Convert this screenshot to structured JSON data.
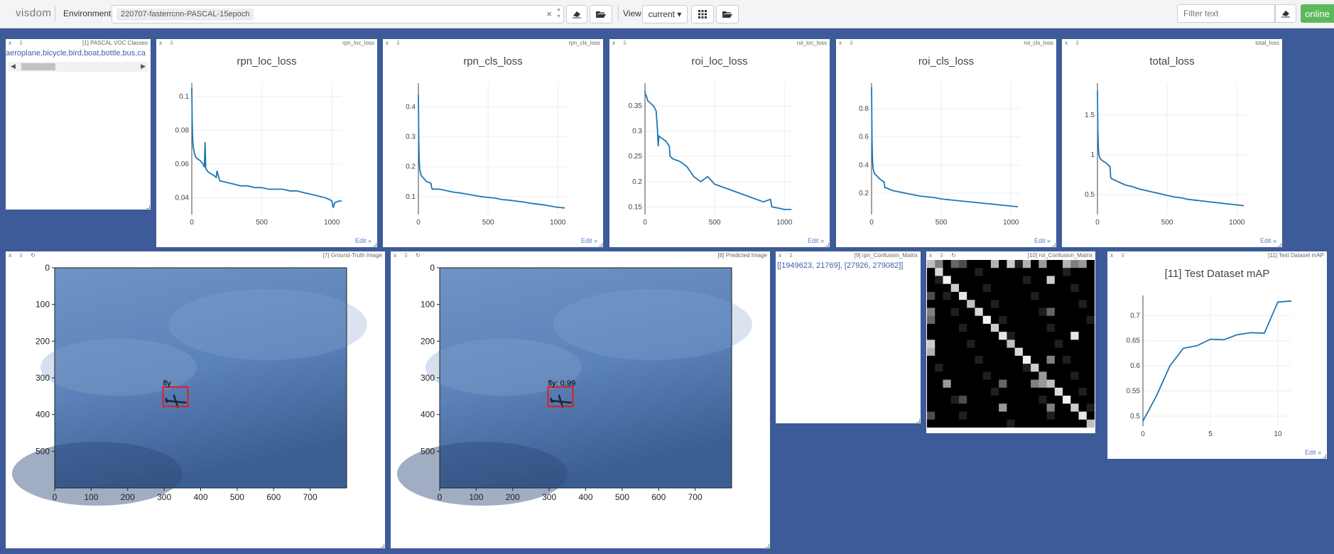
{
  "header": {
    "brand": "visdom",
    "env_label": "Environment",
    "env_value": "220707-fasterrcnn-PASCAL-15epoch",
    "view_label": "View",
    "view_value": "current ▾",
    "filter_placeholder": "Filter text",
    "online_label": "online"
  },
  "panes": {
    "classes": {
      "title": "[1] PASCAL VOC Classes",
      "text": "aeroplane,bicycle,bird,boat,bottle,bus,ca"
    },
    "rpn_loc": {
      "title": "rpn_loc_loss",
      "plot_title": "rpn_loc_loss",
      "edit": "Edit »"
    },
    "rpn_cls": {
      "title": "rpn_cls_loss",
      "plot_title": "rpn_cls_loss",
      "edit": "Edit »"
    },
    "roi_loc": {
      "title": "roi_loc_loss",
      "plot_title": "roi_loc_loss",
      "edit": "Edit »"
    },
    "roi_cls": {
      "title": "roi_cls_loss",
      "plot_title": "roi_cls_loss",
      "edit": "Edit »"
    },
    "total": {
      "title": "total_loss",
      "plot_title": "total_loss",
      "edit": "Edit »"
    },
    "gt_image": {
      "title": "[7] Ground-Truth Image",
      "box_label": "fly"
    },
    "pred_image": {
      "title": "[8] Predicted Image",
      "box_label": "fly: 0.99"
    },
    "rpn_conf": {
      "title": "[9] rpn_Confusion_Matrix",
      "text": "[[1949623, 21769], [27926, 279082]]"
    },
    "roi_conf": {
      "title": "[10] roi_Confusion_Matrix"
    },
    "map": {
      "title": "[11] Test Dataset mAP",
      "plot_title": "[11] Test Dataset mAP",
      "edit": "Edit »"
    }
  },
  "chart_data": [
    {
      "type": "line",
      "title": "rpn_loc_loss",
      "x": [
        0,
        3,
        6,
        10,
        20,
        30,
        40,
        60,
        80,
        90,
        95,
        100,
        110,
        120,
        140,
        160,
        175,
        180,
        200,
        250,
        300,
        350,
        400,
        450,
        500,
        550,
        600,
        650,
        700,
        750,
        800,
        850,
        900,
        950,
        980,
        1000,
        1010,
        1020,
        1050,
        1070
      ],
      "y": [
        0.105,
        0.085,
        0.075,
        0.07,
        0.066,
        0.064,
        0.063,
        0.062,
        0.06,
        0.058,
        0.073,
        0.057,
        0.056,
        0.055,
        0.054,
        0.053,
        0.052,
        0.056,
        0.05,
        0.049,
        0.048,
        0.047,
        0.047,
        0.046,
        0.046,
        0.045,
        0.045,
        0.045,
        0.044,
        0.044,
        0.043,
        0.042,
        0.041,
        0.04,
        0.039,
        0.038,
        0.034,
        0.037,
        0.038,
        0.038
      ],
      "xticks": [
        "0",
        "500",
        "1000"
      ],
      "yticks": [
        "0.04",
        "0.06",
        "0.08",
        "0.1"
      ],
      "xlim": [
        0,
        1070
      ],
      "ylim": [
        0.03,
        0.108
      ]
    },
    {
      "type": "line",
      "title": "rpn_cls_loss",
      "x": [
        0,
        3,
        6,
        10,
        20,
        40,
        60,
        90,
        95,
        100,
        150,
        200,
        250,
        300,
        350,
        400,
        450,
        500,
        550,
        600,
        650,
        700,
        750,
        800,
        850,
        900,
        950,
        1000,
        1050
      ],
      "y": [
        0.44,
        0.28,
        0.22,
        0.19,
        0.17,
        0.16,
        0.15,
        0.145,
        0.13,
        0.125,
        0.125,
        0.12,
        0.115,
        0.112,
        0.108,
        0.104,
        0.1,
        0.097,
        0.095,
        0.09,
        0.088,
        0.085,
        0.082,
        0.078,
        0.075,
        0.072,
        0.068,
        0.064,
        0.062
      ],
      "xticks": [
        "0",
        "500",
        "1000"
      ],
      "yticks": [
        "0.1",
        "0.2",
        "0.3",
        "0.4"
      ],
      "xlim": [
        0,
        1070
      ],
      "ylim": [
        0.04,
        0.48
      ]
    },
    {
      "type": "line",
      "title": "roi_loc_loss",
      "x": [
        0,
        5,
        10,
        20,
        40,
        60,
        80,
        90,
        95,
        100,
        150,
        175,
        180,
        200,
        250,
        300,
        350,
        400,
        450,
        500,
        550,
        600,
        650,
        700,
        750,
        800,
        850,
        900,
        910,
        950,
        1000,
        1050
      ],
      "y": [
        0.38,
        0.37,
        0.37,
        0.36,
        0.355,
        0.35,
        0.34,
        0.3,
        0.27,
        0.29,
        0.28,
        0.27,
        0.25,
        0.245,
        0.24,
        0.23,
        0.21,
        0.2,
        0.21,
        0.195,
        0.19,
        0.185,
        0.18,
        0.175,
        0.17,
        0.165,
        0.16,
        0.165,
        0.15,
        0.148,
        0.145,
        0.145
      ],
      "xticks": [
        "0",
        "500",
        "1000"
      ],
      "yticks": [
        "0.15",
        "0.2",
        "0.25",
        "0.3",
        "0.35"
      ],
      "xlim": [
        0,
        1070
      ],
      "ylim": [
        0.135,
        0.395
      ]
    },
    {
      "type": "line",
      "title": "roi_cls_loss",
      "x": [
        0,
        3,
        6,
        10,
        20,
        40,
        60,
        90,
        95,
        100,
        150,
        200,
        250,
        300,
        350,
        400,
        450,
        500,
        550,
        600,
        650,
        700,
        750,
        800,
        850,
        900,
        950,
        1000,
        1050
      ],
      "y": [
        0.95,
        0.6,
        0.45,
        0.38,
        0.34,
        0.32,
        0.3,
        0.28,
        0.24,
        0.24,
        0.22,
        0.21,
        0.2,
        0.19,
        0.18,
        0.175,
        0.17,
        0.16,
        0.155,
        0.15,
        0.145,
        0.14,
        0.135,
        0.13,
        0.125,
        0.12,
        0.115,
        0.11,
        0.105
      ],
      "xticks": [
        "0",
        "500",
        "1000"
      ],
      "yticks": [
        "0.2",
        "0.4",
        "0.6",
        "0.8"
      ],
      "xlim": [
        0,
        1070
      ],
      "ylim": [
        0.05,
        0.98
      ]
    },
    {
      "type": "line",
      "title": "total_loss",
      "x": [
        0,
        3,
        6,
        10,
        20,
        40,
        60,
        90,
        95,
        100,
        150,
        200,
        250,
        300,
        350,
        400,
        450,
        500,
        550,
        600,
        650,
        700,
        750,
        800,
        850,
        900,
        950,
        1000,
        1050
      ],
      "y": [
        1.8,
        1.3,
        1.1,
        1.0,
        0.95,
        0.92,
        0.9,
        0.85,
        0.72,
        0.7,
        0.66,
        0.62,
        0.6,
        0.57,
        0.55,
        0.53,
        0.51,
        0.49,
        0.47,
        0.46,
        0.44,
        0.43,
        0.42,
        0.41,
        0.4,
        0.39,
        0.38,
        0.37,
        0.36
      ],
      "xticks": [
        "0",
        "500",
        "1000"
      ],
      "yticks": [
        "0.5",
        "1",
        "1.5"
      ],
      "xlim": [
        0,
        1070
      ],
      "ylim": [
        0.25,
        1.9
      ]
    },
    {
      "type": "line",
      "title": "[11] Test Dataset mAP",
      "x": [
        0,
        1,
        2,
        3,
        4,
        5,
        6,
        7,
        8,
        9,
        10,
        11
      ],
      "y": [
        0.49,
        0.54,
        0.6,
        0.635,
        0.64,
        0.653,
        0.652,
        0.662,
        0.666,
        0.665,
        0.727,
        0.729
      ],
      "xticks": [
        "0",
        "5",
        "10"
      ],
      "yticks": [
        "0.5",
        "0.55",
        "0.6",
        "0.65",
        "0.7"
      ],
      "xlim": [
        0,
        11
      ],
      "ylim": [
        0.48,
        0.74
      ]
    }
  ],
  "image_axes": {
    "xticks": [
      "0",
      "100",
      "200",
      "300",
      "400",
      "500",
      "600",
      "700"
    ],
    "yticks": [
      "0",
      "100",
      "200",
      "300",
      "400",
      "500"
    ]
  }
}
